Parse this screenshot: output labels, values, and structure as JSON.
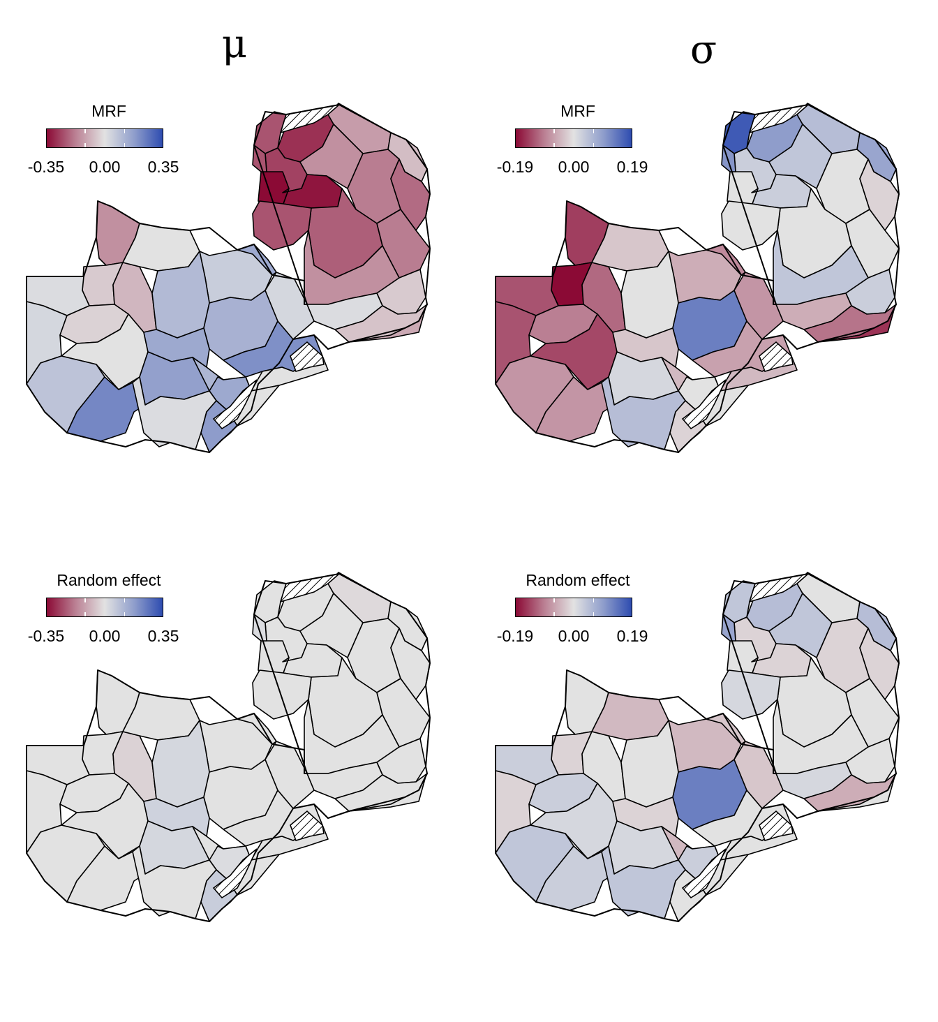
{
  "columns": [
    {
      "title": "μ"
    },
    {
      "title": "σ"
    }
  ],
  "panels": [
    {
      "id": "mu-mrf",
      "legend": {
        "title": "MRF",
        "min_label": "-0.35",
        "mid_label": "0.00",
        "max_label": "0.35",
        "range": [
          -0.35,
          0.35
        ]
      }
    },
    {
      "id": "sigma-mrf",
      "legend": {
        "title": "MRF",
        "min_label": "-0.19",
        "mid_label": "0.00",
        "max_label": "0.19",
        "range": [
          -0.19,
          0.19
        ]
      }
    },
    {
      "id": "mu-random",
      "legend": {
        "title": "Random effect",
        "min_label": "-0.35",
        "mid_label": "0.00",
        "max_label": "0.35",
        "range": [
          -0.35,
          0.35
        ]
      }
    },
    {
      "id": "sigma-random",
      "legend": {
        "title": "Random effect",
        "min_label": "-0.19",
        "mid_label": "0.00",
        "max_label": "0.19",
        "range": [
          -0.19,
          0.19
        ]
      }
    }
  ],
  "colors": {
    "negative": "#8b0a35",
    "neutral": "#e2e2e2",
    "positive": "#2e4cb0",
    "region_border": "#000000",
    "hatched_region_fill": "#ffffff"
  },
  "map_regions": {
    "mu-mrf": {
      "NE1": -0.22,
      "NE2": -0.28,
      "NE3": -0.1,
      "NE4": -0.25,
      "NE5": -0.12,
      "NE6": -0.05,
      "NE7": -0.35,
      "NE8": -0.33,
      "NE9": -0.22,
      "NE10": -0.15,
      "NE11": -0.18,
      "NE12": -0.2,
      "NE13": -0.15,
      "NE14": -0.22,
      "NE15": -0.12,
      "NE16": -0.03,
      "W1": -0.12,
      "W2": -0.03,
      "W3": 0.01,
      "W4": -0.06,
      "W5": 0.0,
      "W6": 0.02,
      "W7": -0.02,
      "W8": 0.0,
      "W9": 0.06,
      "W10": 0.2,
      "C1": 0.04,
      "C2": 0.08,
      "C3": 0.1,
      "C4": 0.12,
      "C5": 0.14,
      "C6": 0.12,
      "C7": 0.18,
      "C8": 0.09,
      "C9": 0.12,
      "C10": 0.01,
      "C11": 0.15,
      "C12": 0.02,
      "C13": 0.0,
      "C14": 0.0,
      "E1": 0.01,
      "E2": -0.04,
      "E3": -0.08
    },
    "sigma-mrf": {
      "NE1": 0.17,
      "NE2": 0.08,
      "NE3": 0.04,
      "NE4": 0.02,
      "NE5": 0.03,
      "NE6": 0.07,
      "NE7": 0.0,
      "NE8": 0.02,
      "NE9": 0.09,
      "NE10": 0.0,
      "NE11": -0.01,
      "NE12": 0.0,
      "NE13": 0.0,
      "NE14": 0.0,
      "NE15": 0.03,
      "NE16": 0.02,
      "W1": -0.14,
      "W2": -0.19,
      "W3": -0.12,
      "W4": -0.1,
      "W5": -0.02,
      "W6": -0.12,
      "W7": -0.08,
      "W8": -0.13,
      "W9": -0.06,
      "W10": -0.06,
      "C1": -0.04,
      "C2": 0.0,
      "C3": 0.12,
      "C4": -0.02,
      "C5": 0.01,
      "C6": -0.07,
      "C7": -0.05,
      "C8": -0.03,
      "C9": 0.0,
      "C10": 0.04,
      "C11": -0.01,
      "C12": -0.06,
      "C13": -0.03,
      "C14": 0.0,
      "E1": -0.04,
      "E2": -0.09,
      "E3": -0.15
    },
    "mu-random": {
      "NE1": 0.0,
      "NE2": 0.0,
      "NE3": -0.01,
      "NE4": 0.0,
      "NE5": 0.0,
      "NE6": 0.0,
      "NE7": 0.0,
      "NE8": 0.0,
      "NE9": 0.01,
      "NE10": 0.0,
      "NE11": 0.0,
      "NE12": 0.0,
      "NE13": 0.0,
      "NE14": 0.0,
      "NE15": 0.0,
      "NE16": 0.0,
      "W1": 0.0,
      "W2": 0.0,
      "W3": 0.0,
      "W4": -0.02,
      "W5": 0.0,
      "W6": 0.0,
      "W7": 0.0,
      "W8": 0.0,
      "W9": 0.0,
      "W10": 0.0,
      "C1": 0.0,
      "C2": 0.02,
      "C3": 0.0,
      "C4": 0.03,
      "C5": 0.02,
      "C6": 0.0,
      "C7": 0.0,
      "C8": 0.0,
      "C9": 0.01,
      "C10": 0.0,
      "C11": 0.04,
      "C12": 0.0,
      "C13": 0.0,
      "C14": 0.0,
      "E1": 0.0,
      "E2": 0.0,
      "E3": 0.0
    },
    "sigma-random": {
      "NE1": 0.03,
      "NE2": 0.04,
      "NE3": 0.0,
      "NE4": -0.01,
      "NE5": 0.03,
      "NE6": 0.04,
      "NE7": 0.0,
      "NE8": -0.01,
      "NE9": 0.07,
      "NE10": -0.01,
      "NE11": -0.01,
      "NE12": 0.0,
      "NE13": 0.0,
      "NE14": 0.01,
      "NE15": 0.0,
      "NE16": 0.0,
      "W1": 0.0,
      "W2": -0.01,
      "W3": 0.02,
      "W4": 0.0,
      "W5": -0.03,
      "W6": -0.01,
      "W7": 0.02,
      "W8": 0.01,
      "W9": 0.03,
      "W10": 0.02,
      "C1": -0.03,
      "C2": 0.0,
      "C3": 0.12,
      "C4": -0.01,
      "C5": 0.01,
      "C6": -0.02,
      "C7": 0.0,
      "C8": -0.03,
      "C9": 0.02,
      "C10": 0.03,
      "C11": 0.0,
      "C12": -0.02,
      "C13": 0.0,
      "C14": 0.0,
      "E1": 0.01,
      "E2": -0.04,
      "E3": 0.0
    }
  }
}
